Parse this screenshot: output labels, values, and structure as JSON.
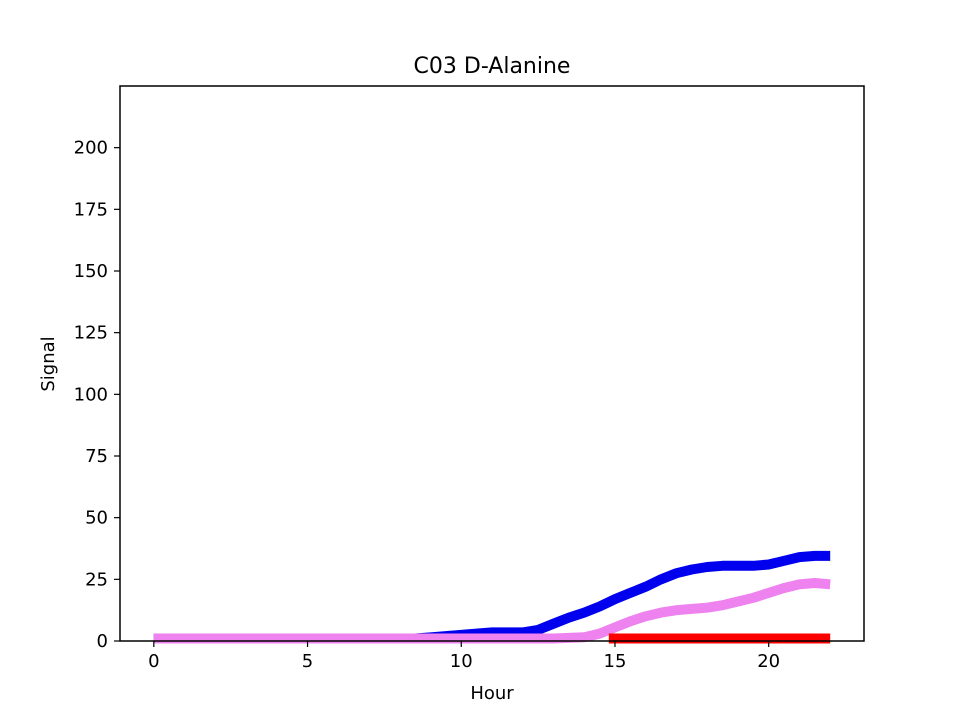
{
  "chart_data": {
    "type": "line",
    "title": "C03 D-Alanine",
    "xlabel": "Hour",
    "ylabel": "Signal",
    "xlim": [
      -1.1,
      23.1
    ],
    "ylim": [
      0,
      225
    ],
    "xticks": [
      0,
      5,
      10,
      15,
      20
    ],
    "yticks": [
      0,
      25,
      50,
      75,
      100,
      125,
      150,
      175,
      200
    ],
    "grid": false,
    "series": [
      {
        "color": "#0000ee",
        "x": [
          0,
          1,
          2,
          3,
          4,
          5,
          6,
          7,
          8,
          8.5,
          9,
          9.5,
          10,
          10.5,
          11,
          11.5,
          12,
          12.5,
          13,
          13.5,
          14,
          14.5,
          15,
          15.5,
          16,
          16.5,
          17,
          17.5,
          18,
          18.5,
          19,
          19.5,
          20,
          20.5,
          21,
          21.5,
          22
        ],
        "y": [
          1,
          1,
          1,
          1,
          1,
          1,
          1,
          1,
          1,
          1,
          1.5,
          2,
          2.5,
          3,
          3.5,
          3.5,
          3.5,
          4.5,
          7,
          9.5,
          11.5,
          14,
          17,
          19.5,
          22,
          25,
          27.5,
          29,
          30,
          30.5,
          30.5,
          30.5,
          31,
          32.5,
          34,
          34.5,
          34.5
        ]
      },
      {
        "color": "#ee82ee",
        "x": [
          0,
          1,
          2,
          3,
          4,
          5,
          6,
          7,
          8,
          9,
          10,
          11,
          12,
          13,
          14,
          14.5,
          15,
          15.5,
          16,
          16.5,
          17,
          17.5,
          18,
          18.5,
          19,
          19.5,
          20,
          20.5,
          21,
          21.5,
          22
        ],
        "y": [
          1,
          1,
          1,
          1,
          1,
          1,
          1,
          1,
          1,
          1,
          1,
          1,
          1,
          1,
          1.5,
          3,
          5.5,
          8,
          10,
          11.5,
          12.5,
          13,
          13.5,
          14.5,
          16,
          17.5,
          19.5,
          21.5,
          23,
          23.5,
          23
        ]
      },
      {
        "color": "#ff0000",
        "x": [
          14.8,
          22
        ],
        "y": [
          1,
          1
        ]
      }
    ]
  }
}
